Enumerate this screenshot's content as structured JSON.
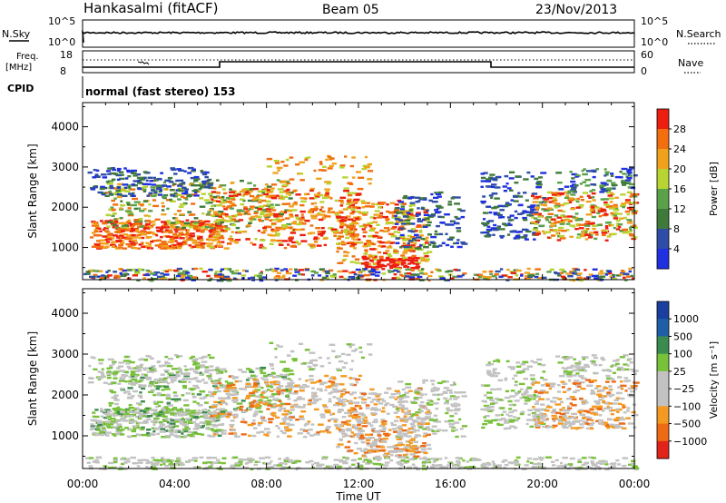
{
  "header": {
    "title": "Hankasalmi (fitACF)",
    "beam": "Beam 05",
    "date": "23/Nov/2013"
  },
  "aux_panels": {
    "nsky_label": "N.Sky",
    "nsky_ticks": [
      "10^5",
      "10^0"
    ],
    "nsearch_label": "N.Search",
    "nsearch_ticks": [
      "10^5",
      "10^0"
    ],
    "freq_label_1": "Freq.",
    "freq_label_2": "[MHz]",
    "freq_ticks": [
      "18",
      "8"
    ],
    "nave_label": "Nave",
    "nave_ticks": [
      "60",
      "0"
    ],
    "cpid_label": "CPID",
    "cpid_text": "normal (fast stereo) 153"
  },
  "colors": {
    "power": [
      "#2030e0",
      "#2f4da6",
      "#3f7a3a",
      "#5aa14a",
      "#b7d432",
      "#f0a21d",
      "#f26e0f",
      "#ec1e10"
    ],
    "velocity": [
      "#e2231a",
      "#ee6a14",
      "#f49a20",
      "#c2c2c2",
      "#c2c2c2",
      "#78c13a",
      "#3b8a4e",
      "#1f5fa8",
      "#1a3f9e"
    ]
  },
  "chart_data": [
    {
      "type": "heatmap",
      "name": "power",
      "ylabel": "Slant Range [km]",
      "xlabel": "Time UT",
      "ylim": [
        200,
        4600
      ],
      "xlim": [
        0,
        24
      ],
      "x_ticks": [
        "00:00",
        "04:00",
        "08:00",
        "12:00",
        "16:00",
        "20:00",
        "00:00"
      ],
      "y_ticks": [
        "1000",
        "2000",
        "3000",
        "4000"
      ],
      "colorbar_label": "Power [dB]",
      "colorbar_ticks": [
        "4",
        "8",
        "12",
        "16",
        "20",
        "24",
        "28"
      ],
      "colorbar_range": [
        0,
        32
      ]
    },
    {
      "type": "heatmap",
      "name": "velocity",
      "ylabel": "Slant Range [km]",
      "xlabel": "Time UT",
      "ylim": [
        200,
        4600
      ],
      "xlim": [
        0,
        24
      ],
      "x_ticks": [
        "00:00",
        "04:00",
        "08:00",
        "12:00",
        "16:00",
        "20:00",
        "00:00"
      ],
      "y_ticks": [
        "1000",
        "2000",
        "3000",
        "4000"
      ],
      "colorbar_label": "Velocity [m s⁻¹]",
      "colorbar_ticks": [
        "1000",
        "500",
        "100",
        "25",
        "−25",
        "−100",
        "−500",
        "−1000"
      ]
    }
  ]
}
